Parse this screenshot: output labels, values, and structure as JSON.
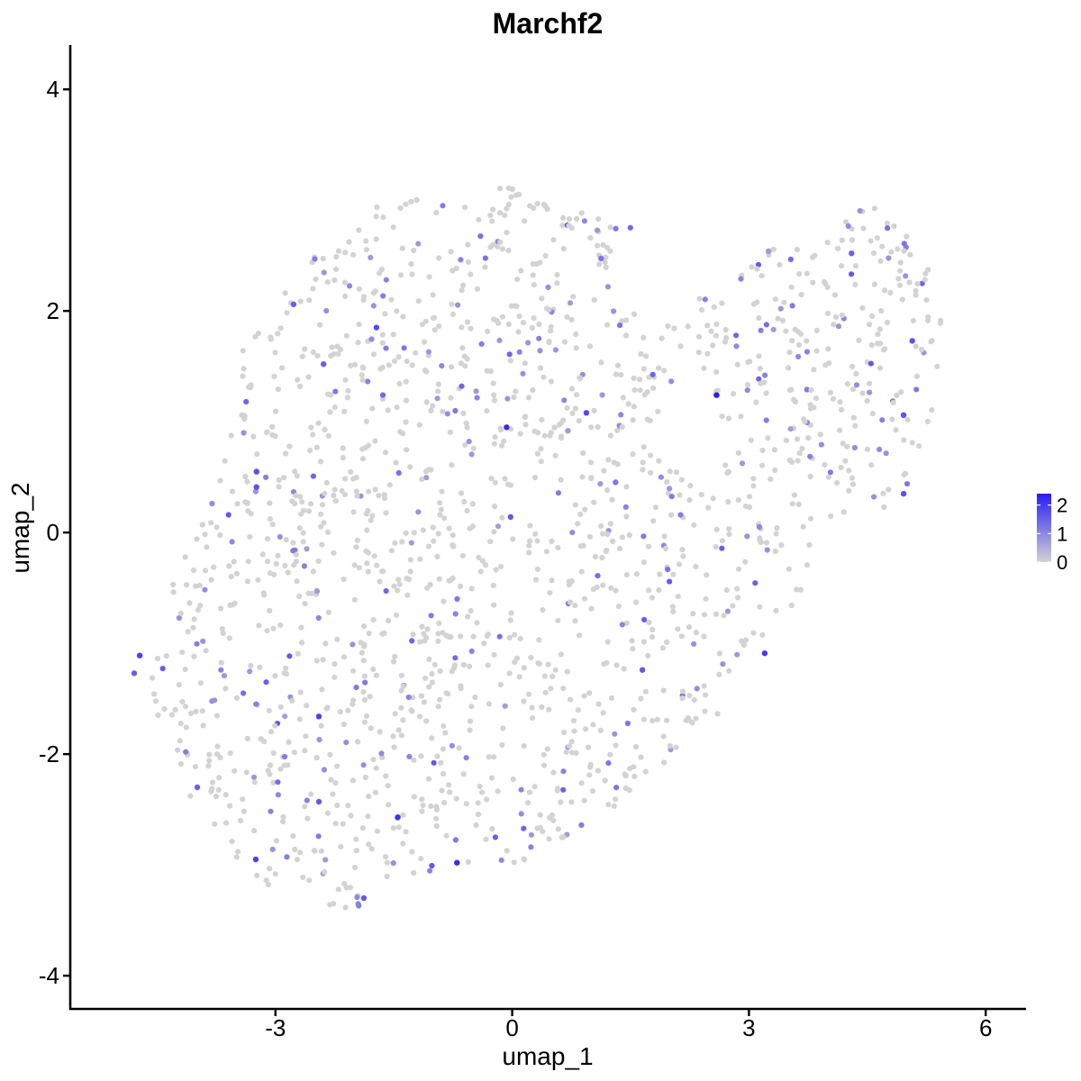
{
  "chart_data": {
    "type": "scatter",
    "title": "Marchf2",
    "xlabel": "umap_1",
    "ylabel": "umap_2",
    "xlim": [
      -5.6,
      6.5
    ],
    "ylim": [
      -4.3,
      4.4
    ],
    "x_ticks": [
      -3,
      0,
      3,
      6
    ],
    "y_ticks": [
      -4,
      -2,
      0,
      2,
      4
    ],
    "x_tick_labels": [
      "-3",
      "0",
      "3",
      "6"
    ],
    "y_tick_labels": [
      "-4",
      "-2",
      "0",
      "2",
      "4"
    ],
    "grid": false,
    "legend": {
      "placement": "right",
      "type": "colorbar",
      "ticks": [
        0,
        1,
        2
      ],
      "tick_labels": [
        "0",
        "1",
        "2"
      ],
      "range": [
        0,
        2.4
      ],
      "low_color": "#d3d3d3",
      "high_color": "#2a1cf7"
    },
    "colors": {
      "low": "#d3d3d3",
      "high": "#2a1cf7",
      "axis": "#000000"
    },
    "highlighted_points": [
      {
        "x": 2.59,
        "y": 1.24,
        "value": 2.4
      },
      {
        "x": -0.7,
        "y": -2.98,
        "value": 2.2
      },
      {
        "x": -0.07,
        "y": 0.95,
        "value": 2.2
      },
      {
        "x": -1.45,
        "y": -2.57,
        "value": 2.1
      },
      {
        "x": 3.2,
        "y": -1.09,
        "value": 2.0
      },
      {
        "x": -4.72,
        "y": -1.11,
        "value": 1.9
      },
      {
        "x": -3.25,
        "y": -2.95,
        "value": 1.9
      },
      {
        "x": -2.45,
        "y": -1.66,
        "value": 1.9
      },
      {
        "x": -1.72,
        "y": 1.85,
        "value": 1.8
      },
      {
        "x": 0.94,
        "y": 1.08,
        "value": 1.8
      },
      {
        "x": -3.24,
        "y": 0.41,
        "value": 1.7
      },
      {
        "x": -3.24,
        "y": 0.55,
        "value": 1.7
      },
      {
        "x": 4.96,
        "y": 0.35,
        "value": 1.7
      },
      {
        "x": 4.96,
        "y": 1.06,
        "value": 1.7
      },
      {
        "x": 5.07,
        "y": 1.73,
        "value": 1.7
      },
      {
        "x": -1.88,
        "y": -3.3,
        "value": 1.6
      },
      {
        "x": -2.45,
        "y": -2.43,
        "value": 1.6
      },
      {
        "x": -0.02,
        "y": 0.14,
        "value": 1.6
      },
      {
        "x": 1.65,
        "y": -1.24,
        "value": 1.6
      },
      {
        "x": -4.79,
        "y": -1.27,
        "value": 1.5
      },
      {
        "x": -3.99,
        "y": -2.3,
        "value": 1.5
      },
      {
        "x": -2.77,
        "y": 2.06,
        "value": 1.5
      },
      {
        "x": -2.39,
        "y": 1.52,
        "value": 1.5
      },
      {
        "x": 4.3,
        "y": 2.52,
        "value": 1.5
      }
    ]
  }
}
